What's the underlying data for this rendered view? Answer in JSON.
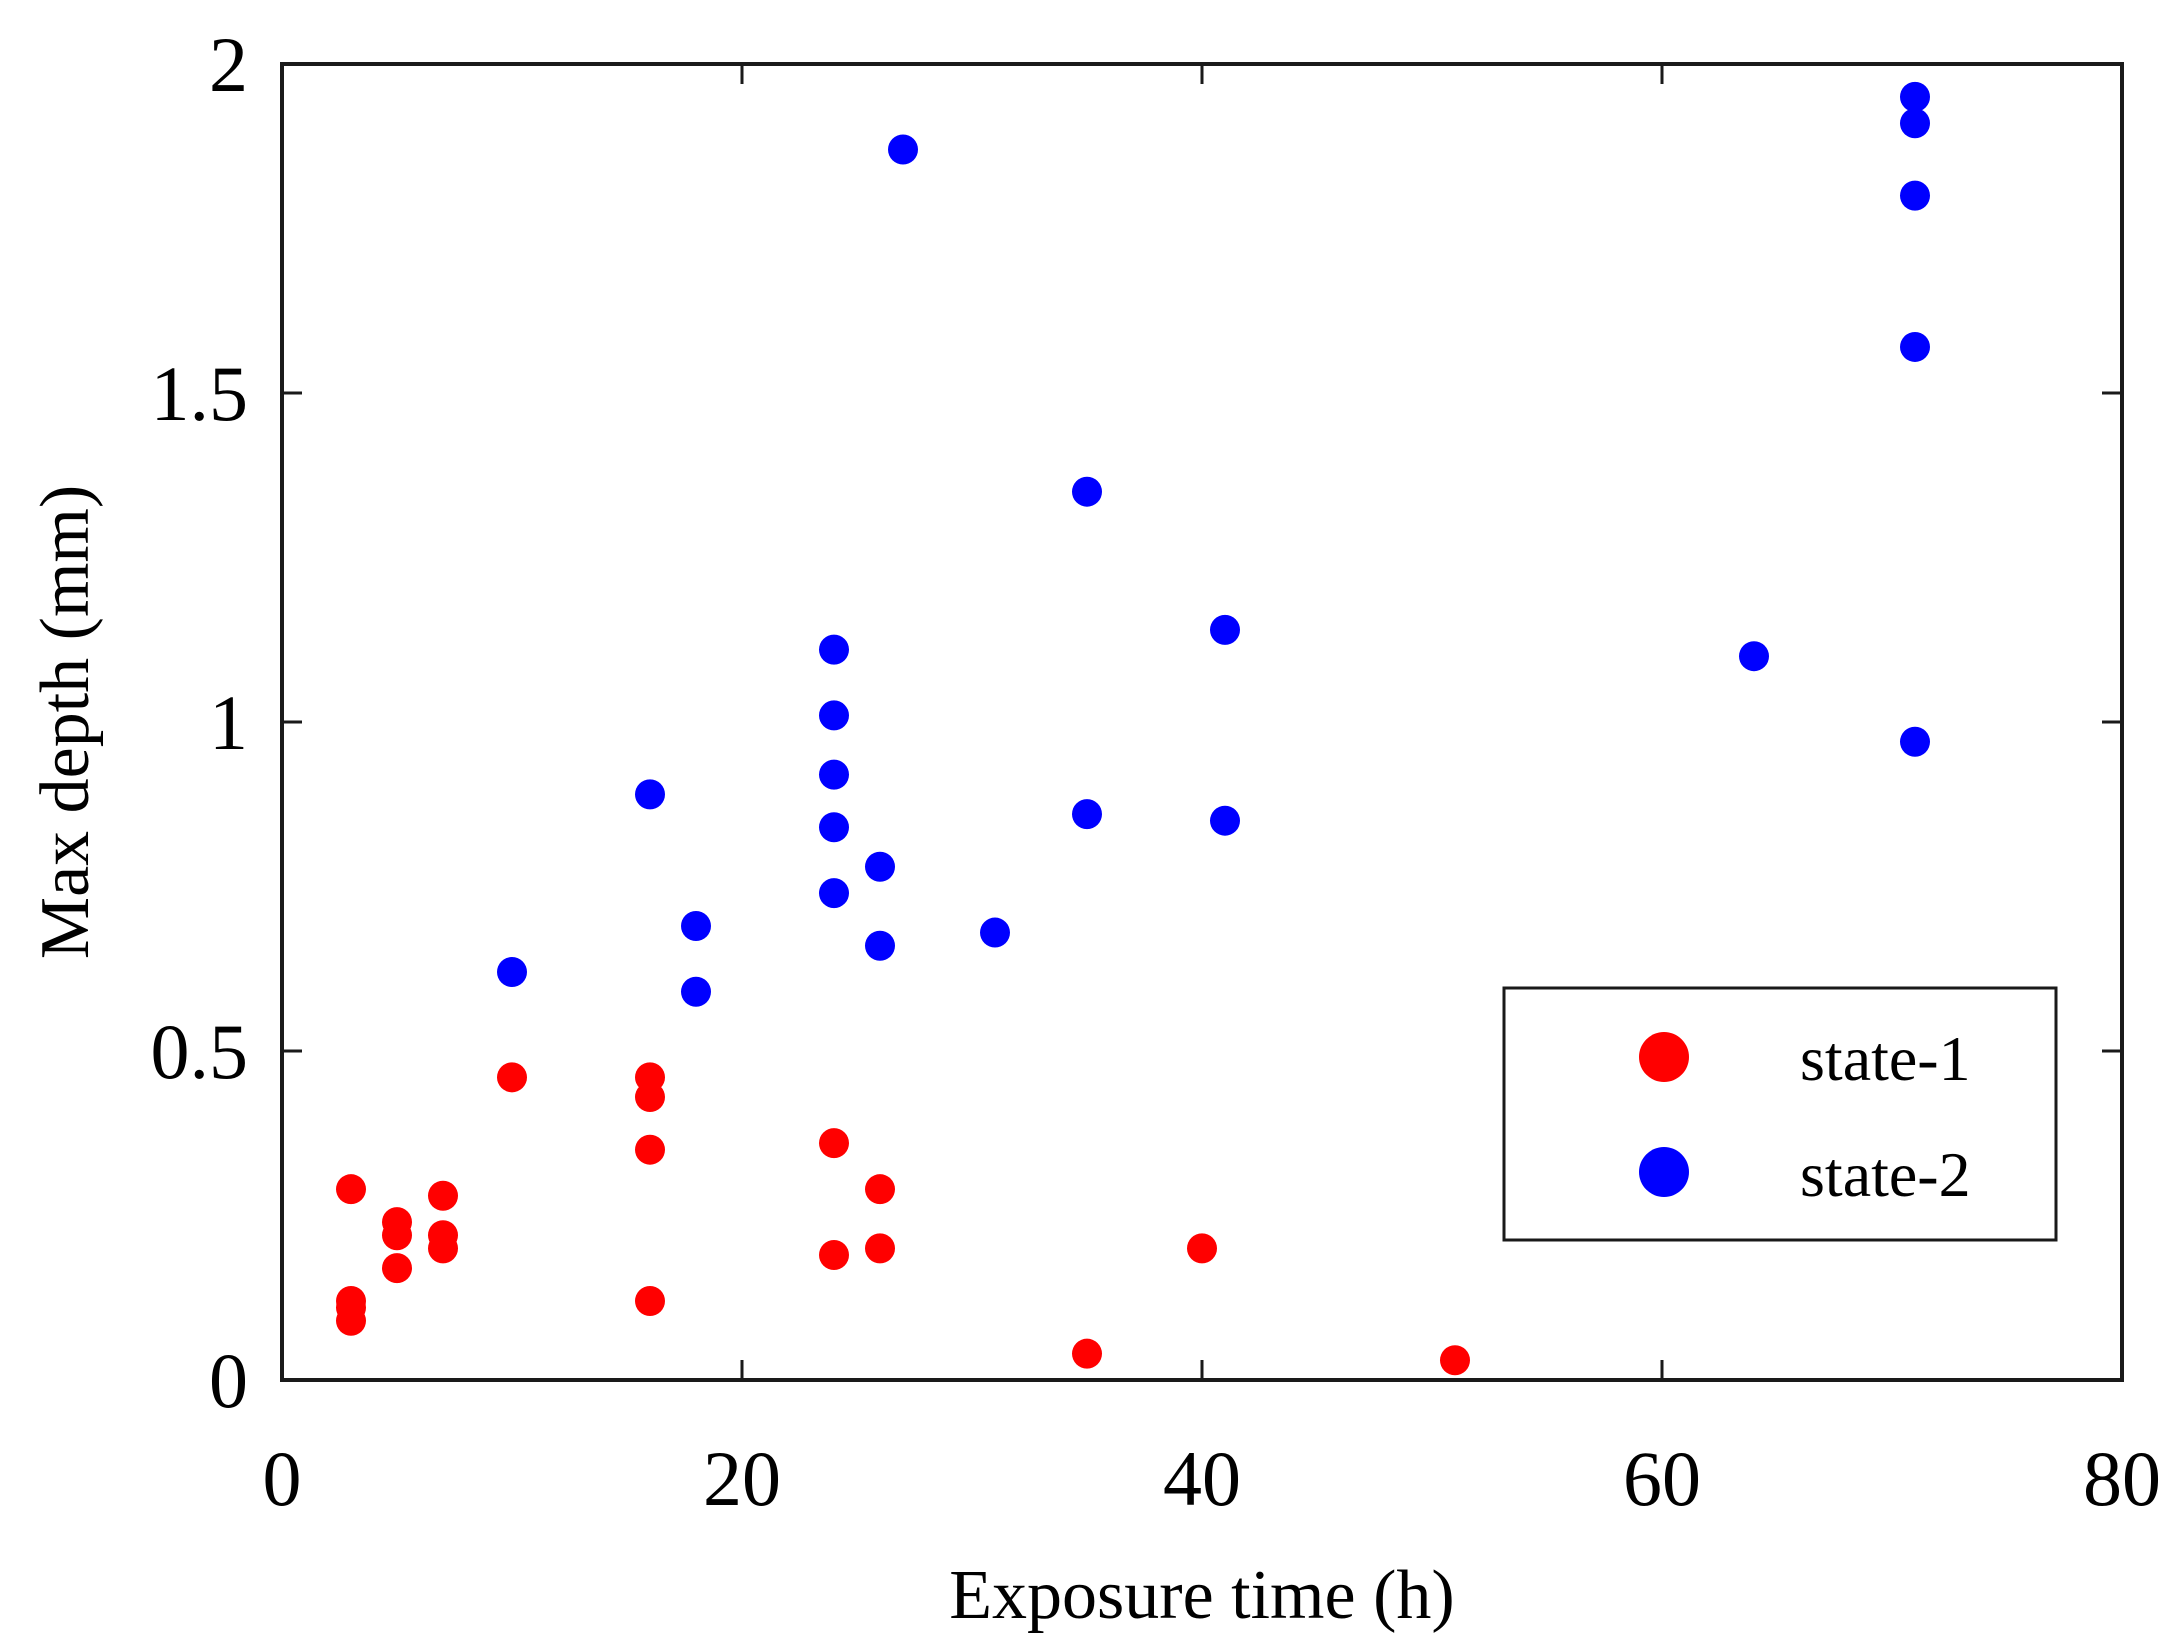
{
  "chart_data": {
    "type": "scatter",
    "title": "",
    "xlabel": "Exposure time (h)",
    "ylabel": "Max depth (mm)",
    "xlim": [
      0,
      80
    ],
    "ylim": [
      0,
      2
    ],
    "xticks": [
      0,
      20,
      40,
      60,
      80
    ],
    "yticks": [
      0,
      0.5,
      1,
      1.5,
      2
    ],
    "xtick_labels": [
      "0",
      "20",
      "40",
      "60",
      "80"
    ],
    "ytick_labels": [
      "0",
      "0.5",
      "1",
      "1.5",
      "2"
    ],
    "grid": false,
    "legend_position": "lower-right",
    "series": [
      {
        "name": "state-1",
        "color": "#ff0000",
        "points": [
          [
            3,
            0.29
          ],
          [
            3,
            0.12
          ],
          [
            3,
            0.11
          ],
          [
            3,
            0.09
          ],
          [
            5,
            0.24
          ],
          [
            5,
            0.22
          ],
          [
            5,
            0.17
          ],
          [
            7,
            0.28
          ],
          [
            7,
            0.22
          ],
          [
            7,
            0.2
          ],
          [
            10,
            0.46
          ],
          [
            16,
            0.46
          ],
          [
            16,
            0.43
          ],
          [
            16,
            0.35
          ],
          [
            16,
            0.12
          ],
          [
            24,
            0.36
          ],
          [
            24,
            0.19
          ],
          [
            26,
            0.29
          ],
          [
            26,
            0.2
          ],
          [
            35,
            0.04
          ],
          [
            40,
            0.2
          ],
          [
            51,
            0.03
          ]
        ]
      },
      {
        "name": "state-2",
        "color": "#0000ff",
        "points": [
          [
            10,
            0.62
          ],
          [
            16,
            0.89
          ],
          [
            18,
            0.69
          ],
          [
            18,
            0.59
          ],
          [
            24,
            1.11
          ],
          [
            24,
            1.01
          ],
          [
            24,
            0.92
          ],
          [
            24,
            0.84
          ],
          [
            24,
            0.74
          ],
          [
            26,
            0.78
          ],
          [
            26,
            0.66
          ],
          [
            27,
            1.87
          ],
          [
            31,
            0.68
          ],
          [
            35,
            1.35
          ],
          [
            35,
            0.86
          ],
          [
            41,
            1.14
          ],
          [
            41,
            0.85
          ],
          [
            64,
            1.1
          ],
          [
            71,
            1.95
          ],
          [
            71,
            1.91
          ],
          [
            71,
            1.8
          ],
          [
            71,
            1.57
          ],
          [
            71,
            0.97
          ]
        ]
      }
    ]
  }
}
